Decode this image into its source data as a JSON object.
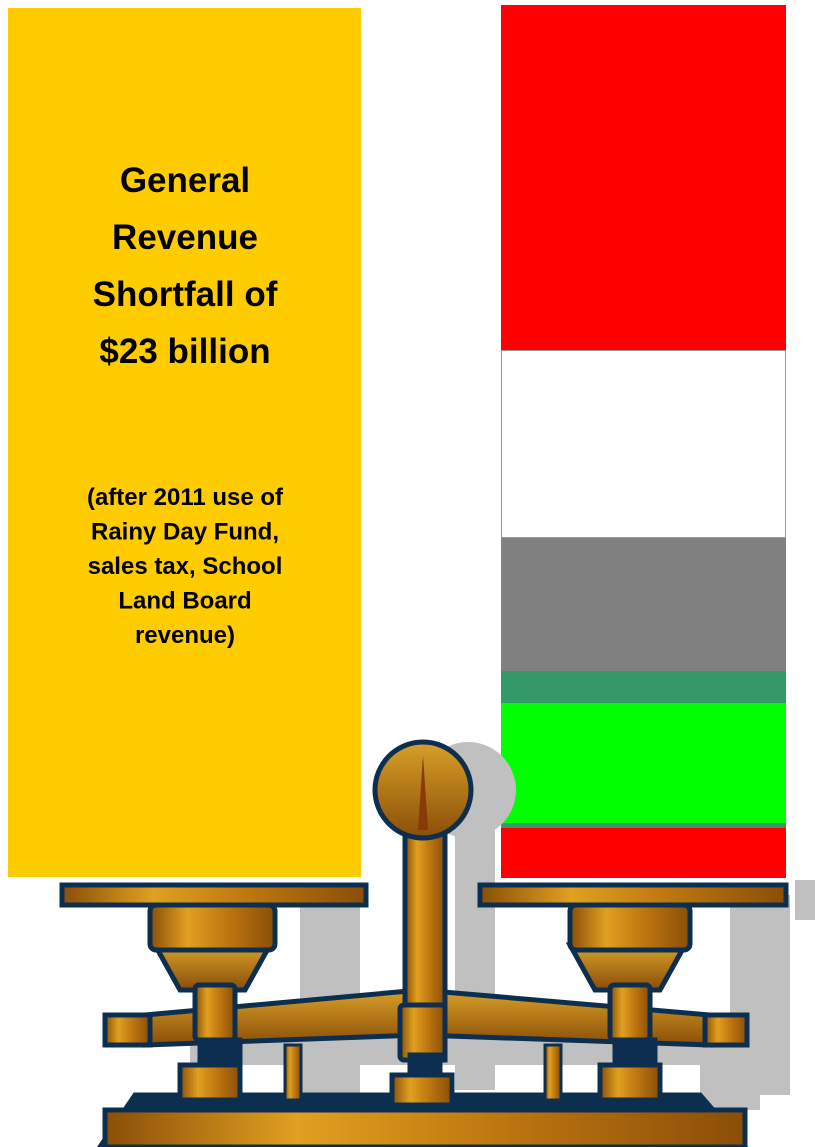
{
  "heading": {
    "lines": [
      "General",
      "Revenue",
      "Shortfall of",
      "$23 billion"
    ]
  },
  "note": {
    "lines": [
      "(after 2011 use of",
      "Rainy Day Fund,",
      "sales tax, School",
      "Land Board",
      "revenue)"
    ]
  }
}
